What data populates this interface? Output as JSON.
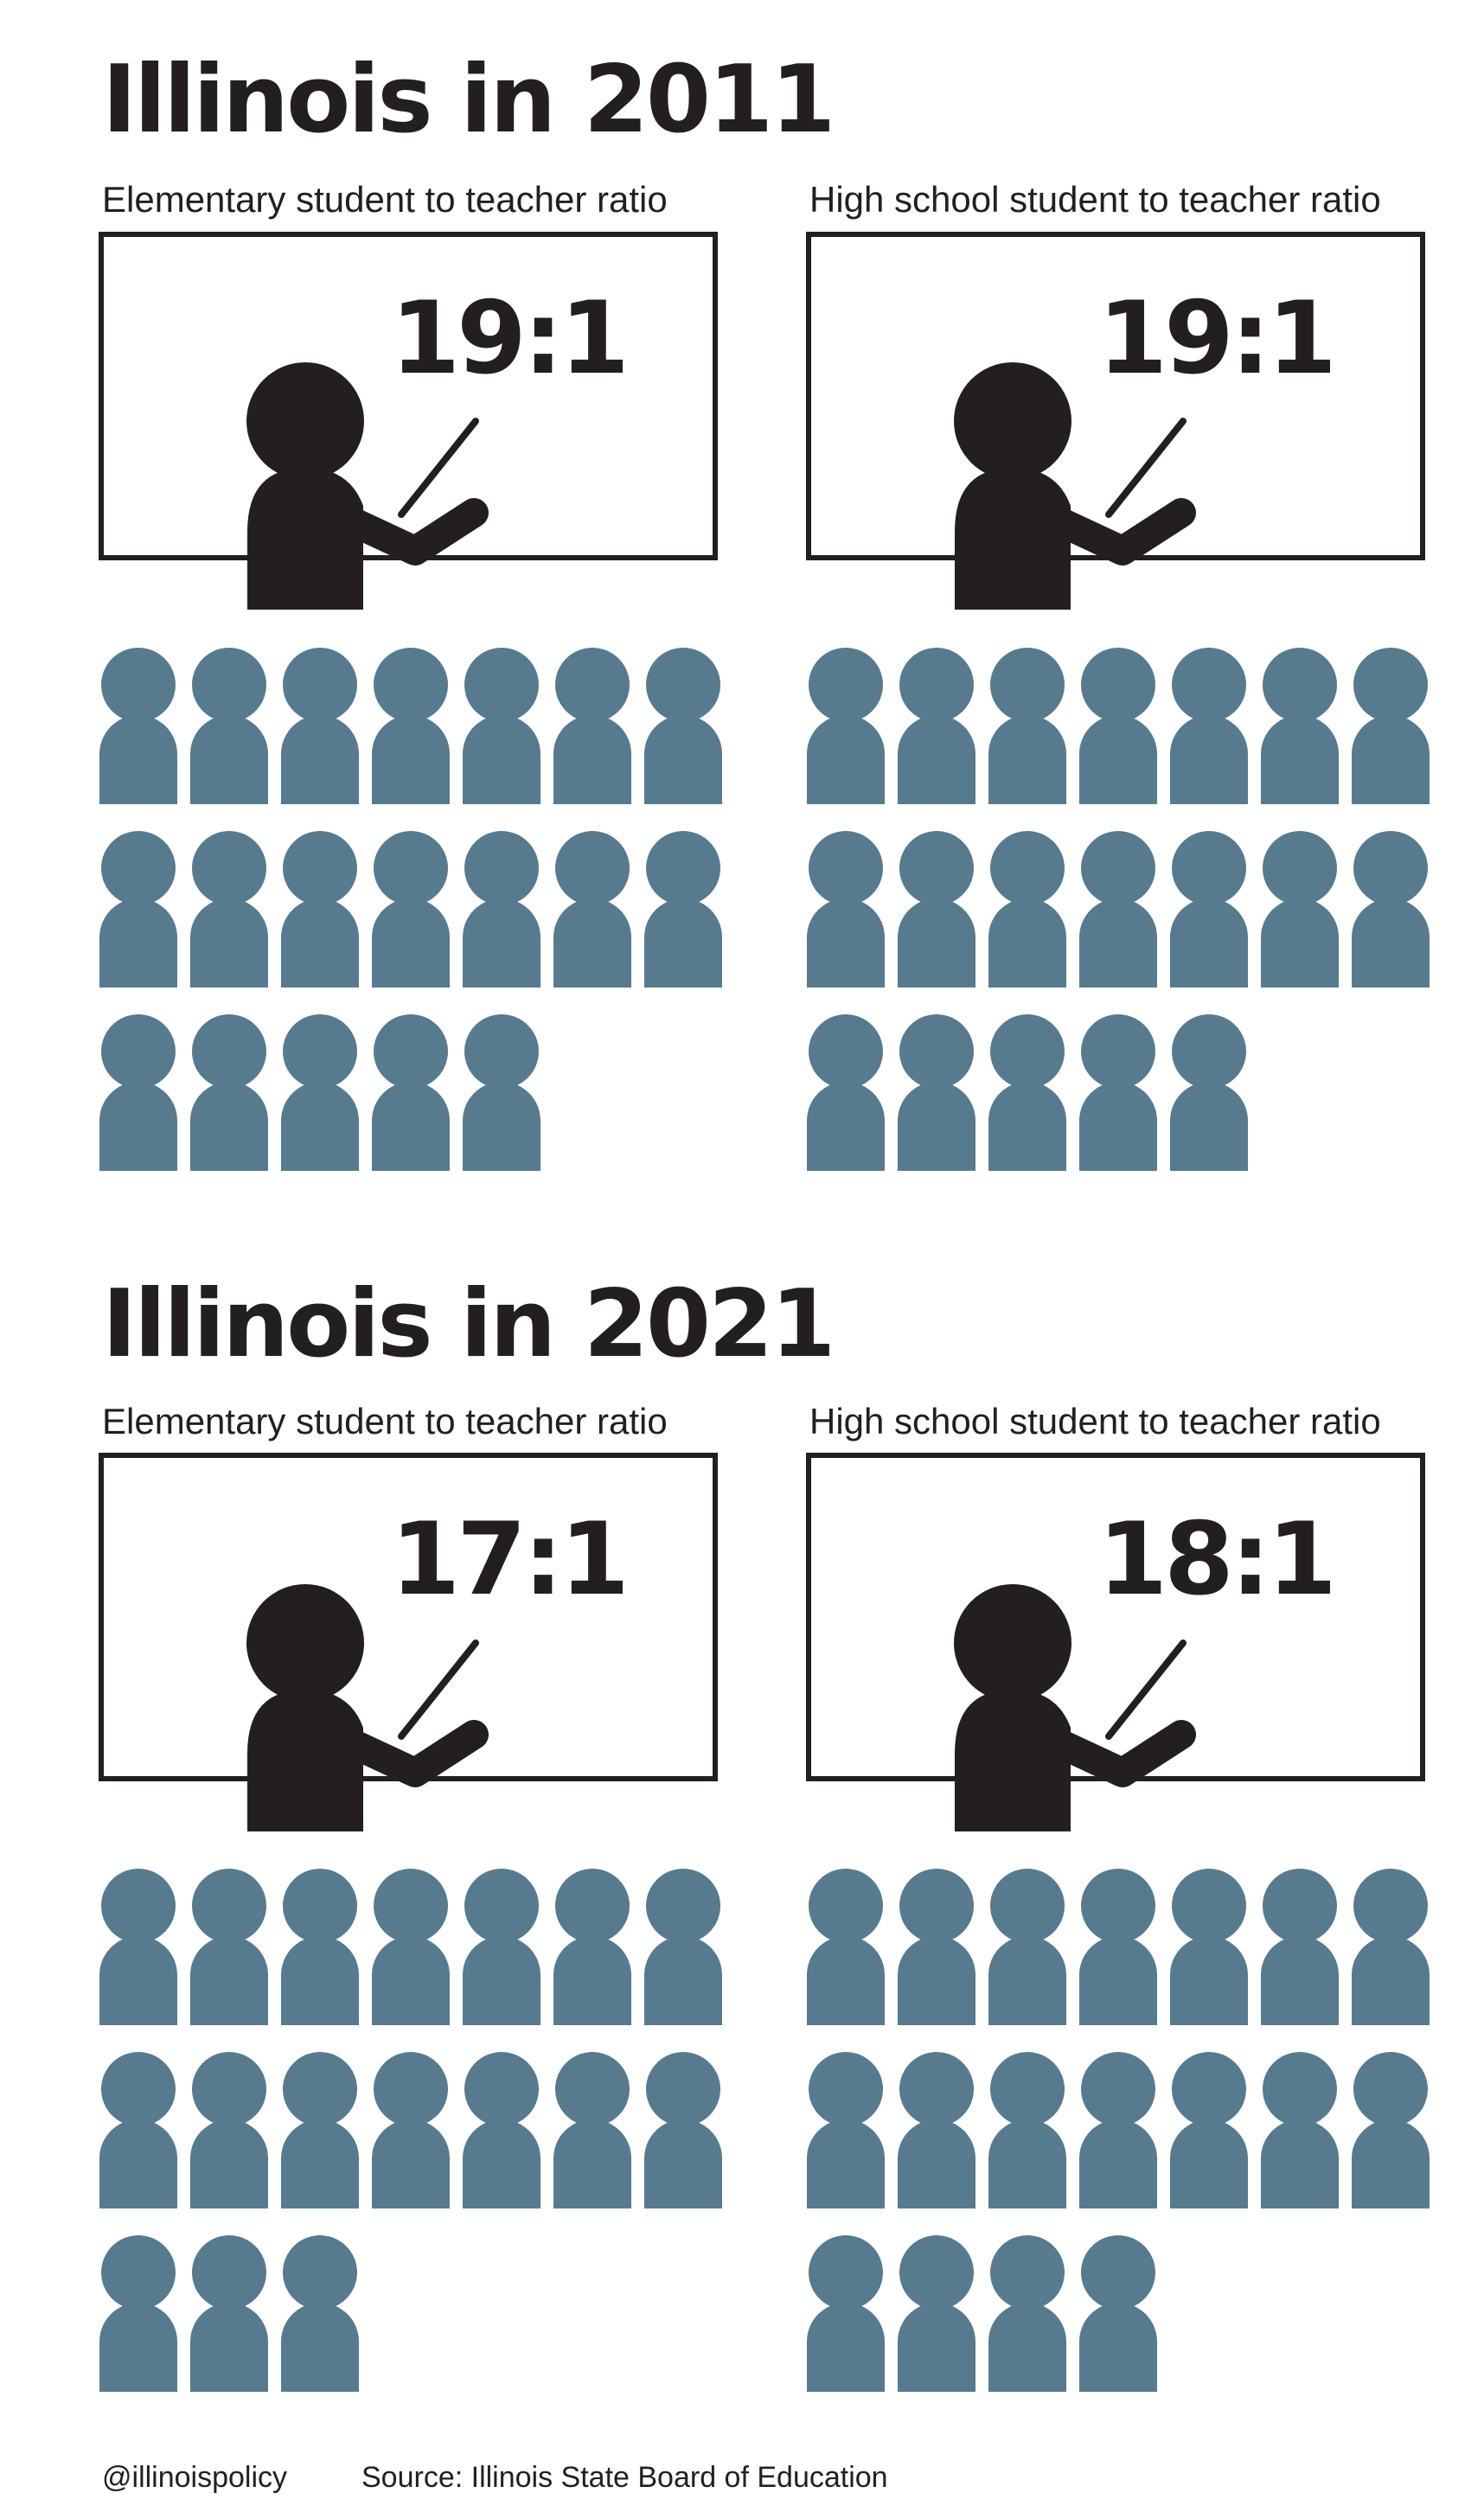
{
  "sections": [
    {
      "title": "Illinois in 2011",
      "panels": [
        {
          "label": "Elementary student to teacher ratio",
          "ratio": "19:1",
          "students": 19
        },
        {
          "label": "High school student to teacher ratio",
          "ratio": "19:1",
          "students": 19
        }
      ]
    },
    {
      "title": "Illinois in 2021",
      "panels": [
        {
          "label": "Elementary student to teacher ratio",
          "ratio": "17:1",
          "students": 17
        },
        {
          "label": "High school student to teacher ratio",
          "ratio": "18:1",
          "students": 18
        }
      ]
    }
  ],
  "footer": {
    "handle": "@illinoispolicy",
    "source": "Source: Illinois State Board of Education"
  },
  "colors": {
    "student": "#587a8e",
    "teacher": "#231f20"
  },
  "icons": {
    "teacher": "teacher-pointing-icon",
    "student": "student-icon"
  }
}
